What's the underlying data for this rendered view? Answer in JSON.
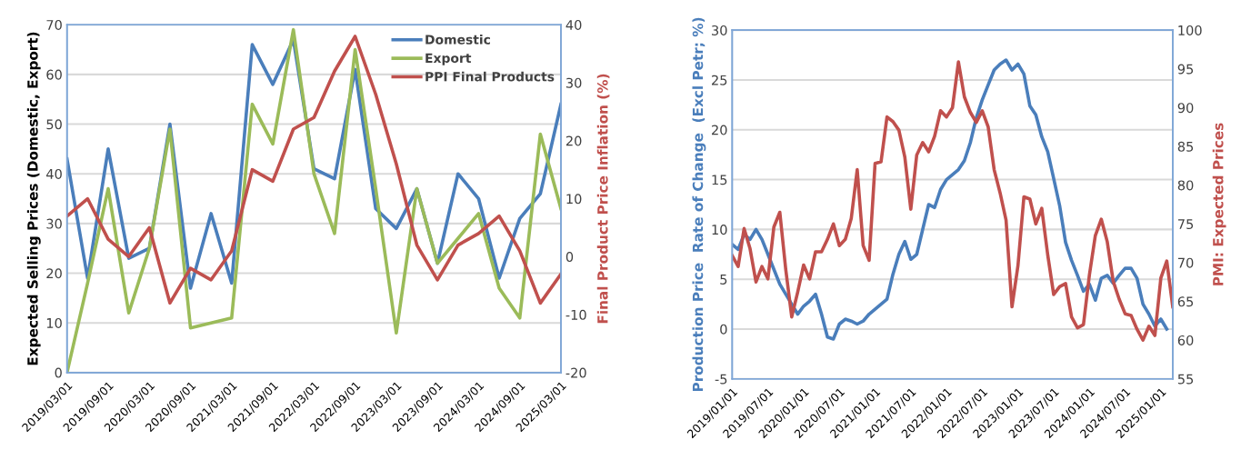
{
  "chart_data": [
    {
      "type": "line",
      "ylabel": "Expected Selling Prices (Domestic, Export)",
      "y2label": "Final Product Price Inflation (%)",
      "categories": [
        "2019/03/01",
        null,
        "2019/09/01",
        null,
        "2020/03/01",
        null,
        "2020/09/01",
        null,
        "2021/03/01",
        null,
        "2021/09/01",
        null,
        "2022/03/01",
        null,
        "2022/09/01",
        null,
        "2023/03/01",
        null,
        "2023/09/01",
        null,
        "2024/03/01",
        null,
        "2024/09/01",
        null,
        "2025/03/01"
      ],
      "series": [
        {
          "name": "Domestic",
          "color": "#4a7ebb",
          "values": [
            43,
            19,
            45,
            23,
            25,
            50,
            17,
            32,
            18,
            66,
            58,
            67,
            41,
            39,
            61,
            33,
            29,
            37,
            22,
            40,
            35,
            19,
            31,
            36,
            54
          ]
        },
        {
          "name": "Export",
          "color": "#9bbb59",
          "values": [
            0,
            18,
            37,
            12,
            25,
            49,
            9,
            10,
            11,
            54,
            46,
            69,
            40,
            28,
            65,
            37,
            8,
            37,
            22,
            27,
            32,
            17,
            11,
            48,
            33
          ]
        },
        {
          "name": "PPI Final Products",
          "color": "#c0504d",
          "axis": "y2",
          "values": [
            7,
            10,
            3,
            0,
            5,
            -8,
            -2,
            -4,
            1,
            15,
            13,
            22,
            24,
            32,
            38,
            28,
            16,
            2,
            -4,
            2,
            4,
            7,
            1,
            -8,
            -3
          ]
        }
      ],
      "ylim": [
        0,
        70
      ],
      "yticks": [
        0,
        10,
        20,
        30,
        40,
        50,
        60,
        70
      ],
      "y2lim": [
        -20,
        40
      ],
      "y2ticks": [
        -20,
        -10,
        0,
        10,
        20,
        30,
        40
      ],
      "grid": "y",
      "legend": "top right"
    },
    {
      "type": "line",
      "ylabel": "Production Price  Rate of Change  (Excl Petr; %)",
      "y2label": "PMI: Expected Prices",
      "categories": [
        "2019/01/01",
        null,
        null,
        null,
        null,
        null,
        "2019/07/01",
        null,
        null,
        null,
        null,
        null,
        "2020/01/01",
        null,
        null,
        null,
        null,
        null,
        "2020/07/01",
        null,
        null,
        null,
        null,
        null,
        "2021/01/01",
        null,
        null,
        null,
        null,
        null,
        "2021/07/01",
        null,
        null,
        null,
        null,
        null,
        "2022/01/01",
        null,
        null,
        null,
        null,
        null,
        "2022/07/01",
        null,
        null,
        null,
        null,
        null,
        "2023/01/01",
        null,
        null,
        null,
        null,
        null,
        "2023/07/01",
        null,
        null,
        null,
        null,
        null,
        "2024/01/01",
        null,
        null,
        null,
        null,
        null,
        "2024/07/01",
        null,
        null,
        null,
        null,
        null,
        "2025/01/01",
        null,
        null
      ],
      "series": [
        {
          "color": "#4a7ebb",
          "values": [
            8.5,
            8.0,
            9.5,
            9.0,
            10.0,
            9.0,
            7.5,
            6.0,
            4.5,
            3.5,
            2.5,
            1.5,
            2.3,
            2.8,
            3.5,
            1.5,
            -0.8,
            -1.0,
            0.5,
            1.0,
            0.8,
            0.5,
            0.8,
            1.5,
            2.0,
            2.5,
            3.0,
            5.5,
            7.5,
            8.8,
            7.0,
            7.5,
            10.0,
            12.5,
            12.2,
            14.0,
            15.0,
            15.5,
            16.0,
            16.9,
            18.7,
            21.2,
            23.0,
            24.5,
            26.0,
            26.6,
            27.0,
            26.0,
            26.6,
            25.6,
            22.4,
            21.5,
            19.3,
            17.8,
            15.1,
            12.4,
            8.7,
            6.9,
            5.4,
            3.8,
            4.5,
            2.9,
            5.1,
            5.4,
            4.6,
            5.4,
            6.1,
            6.1,
            5.1,
            2.5,
            1.5,
            0.3,
            1.0,
            0.0,
            null
          ]
        },
        {
          "color": "#c0504d",
          "axis": "y2",
          "values": [
            70.9,
            69.5,
            74.4,
            71.8,
            67.5,
            69.5,
            67.9,
            74.6,
            76.5,
            69.1,
            63.0,
            66.2,
            69.7,
            67.9,
            71.4,
            71.4,
            73.0,
            75.0,
            72.2,
            73.0,
            75.7,
            82.0,
            72.2,
            70.3,
            82.8,
            83.0,
            88.8,
            88.2,
            87.1,
            83.6,
            76.9,
            83.9,
            85.5,
            84.3,
            86.3,
            89.6,
            88.8,
            90.0,
            95.9,
            91.4,
            89.4,
            88.1,
            89.6,
            87.5,
            82.0,
            79.0,
            75.5,
            64.3,
            69.6,
            78.5,
            78.2,
            75.0,
            77.0,
            71.0,
            65.9,
            66.9,
            67.3,
            63.0,
            61.6,
            62.0,
            68.4,
            73.5,
            75.6,
            72.7,
            67.6,
            65.3,
            63.4,
            63.2,
            61.4,
            60.0,
            61.8,
            60.6,
            68.0,
            70.2,
            64.3
          ]
        }
      ],
      "ylim": [
        -5,
        30
      ],
      "yticks": [
        -5,
        0,
        5,
        10,
        15,
        20,
        25,
        30
      ],
      "y2lim": [
        55,
        100
      ],
      "y2ticks": [
        55,
        60,
        65,
        70,
        75,
        80,
        85,
        90,
        95,
        100
      ],
      "grid": "y"
    }
  ]
}
